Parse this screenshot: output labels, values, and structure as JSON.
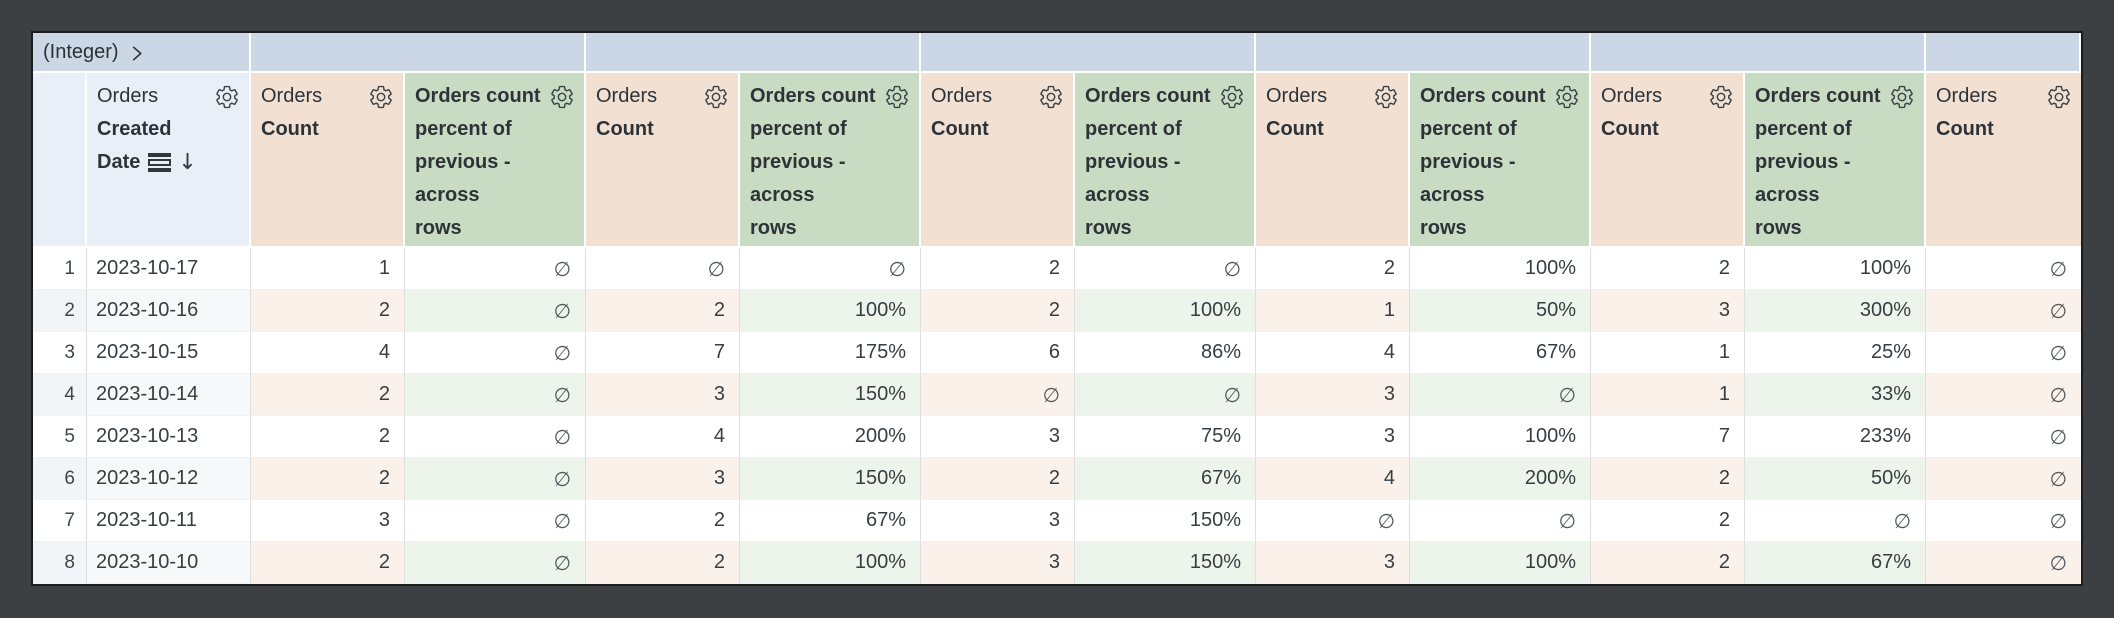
{
  "pivot_bar": {
    "field_label": "(Integer)"
  },
  "columns": {
    "row_number_header": "",
    "dimension": {
      "label": "Orders Created Date",
      "view_label": "Orders",
      "field_lines": [
        "Created",
        "Date"
      ],
      "sort_direction": "descending",
      "sort_arrow": "↓"
    },
    "measures": [
      {
        "kind": "count",
        "view_label": "Orders",
        "field_label": "Count"
      },
      {
        "kind": "percent",
        "label": "Orders count percent of previous - across rows",
        "label_lines": [
          "Orders count",
          "percent of",
          "previous -",
          "across",
          "rows"
        ]
      },
      {
        "kind": "count",
        "view_label": "Orders",
        "field_label": "Count"
      },
      {
        "kind": "percent",
        "label": "Orders count percent of previous - across rows",
        "label_lines": [
          "Orders count",
          "percent of",
          "previous -",
          "across",
          "rows"
        ]
      },
      {
        "kind": "count",
        "view_label": "Orders",
        "field_label": "Count"
      },
      {
        "kind": "percent",
        "label": "Orders count percent of previous - across rows",
        "label_lines": [
          "Orders count",
          "percent of",
          "previous -",
          "across",
          "rows"
        ]
      },
      {
        "kind": "count",
        "view_label": "Orders",
        "field_label": "Count"
      },
      {
        "kind": "percent",
        "label": "Orders count percent of previous - across rows",
        "label_lines": [
          "Orders count",
          "percent of",
          "previous -",
          "across",
          "rows"
        ]
      },
      {
        "kind": "count",
        "view_label": "Orders",
        "field_label": "Count"
      },
      {
        "kind": "percent",
        "label": "Orders count percent of previous - across rows",
        "label_lines": [
          "Orders count",
          "percent of",
          "previous -",
          "across",
          "rows"
        ]
      },
      {
        "kind": "count",
        "view_label": "Orders",
        "field_label": "Count"
      }
    ]
  },
  "null_symbol": "∅",
  "rows": [
    {
      "num": "1",
      "date": "2023-10-17",
      "values": [
        "1",
        "∅",
        "∅",
        "∅",
        "2",
        "∅",
        "2",
        "100%",
        "2",
        "100%",
        "∅"
      ]
    },
    {
      "num": "2",
      "date": "2023-10-16",
      "values": [
        "2",
        "∅",
        "2",
        "100%",
        "2",
        "100%",
        "1",
        "50%",
        "3",
        "300%",
        "∅"
      ]
    },
    {
      "num": "3",
      "date": "2023-10-15",
      "values": [
        "4",
        "∅",
        "7",
        "175%",
        "6",
        "86%",
        "4",
        "67%",
        "1",
        "25%",
        "∅"
      ]
    },
    {
      "num": "4",
      "date": "2023-10-14",
      "values": [
        "2",
        "∅",
        "3",
        "150%",
        "∅",
        "∅",
        "3",
        "∅",
        "1",
        "33%",
        "∅"
      ]
    },
    {
      "num": "5",
      "date": "2023-10-13",
      "values": [
        "2",
        "∅",
        "4",
        "200%",
        "3",
        "75%",
        "3",
        "100%",
        "7",
        "233%",
        "∅"
      ]
    },
    {
      "num": "6",
      "date": "2023-10-12",
      "values": [
        "2",
        "∅",
        "3",
        "150%",
        "2",
        "67%",
        "4",
        "200%",
        "2",
        "50%",
        "∅"
      ]
    },
    {
      "num": "7",
      "date": "2023-10-11",
      "values": [
        "3",
        "∅",
        "2",
        "67%",
        "3",
        "150%",
        "∅",
        "∅",
        "2",
        "∅",
        "∅"
      ]
    },
    {
      "num": "8",
      "date": "2023-10-10",
      "values": [
        "2",
        "∅",
        "2",
        "100%",
        "3",
        "150%",
        "3",
        "100%",
        "2",
        "67%",
        "∅"
      ]
    }
  ],
  "colors": {
    "frame_bg": "#3c4043",
    "pivot_bar_bg": "#cbd7e4",
    "dimension_header_bg": "#e9eff6",
    "count_header_bg": "#f2e1d2",
    "percent_header_bg": "#c7dcc2",
    "count_row_tint": "#faf1ea",
    "percent_row_tint": "#edf4eb",
    "header_text": "#2d3338",
    "cell_text": "#383d42",
    "null_text": "#53585d"
  }
}
